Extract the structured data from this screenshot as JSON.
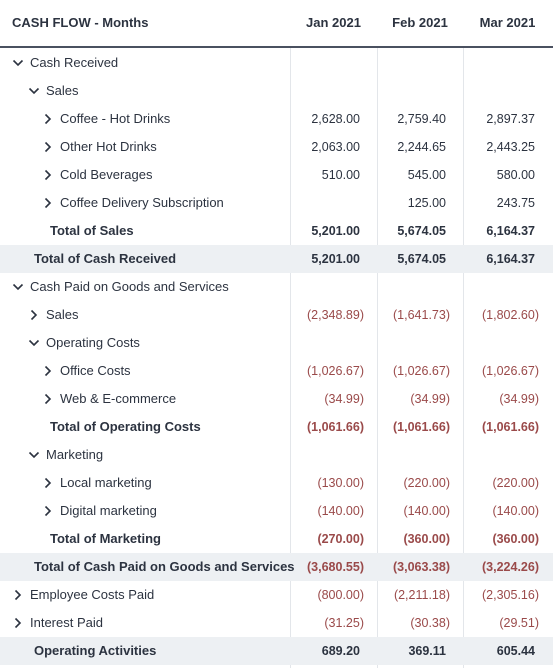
{
  "header": {
    "title": "CASH FLOW - Months",
    "columns": [
      "Jan 2021",
      "Feb 2021",
      "Mar 2021"
    ]
  },
  "rows": [
    {
      "label": "Cash Received"
    },
    {
      "label": "Sales"
    },
    {
      "label": "Coffee - Hot Drinks",
      "cells": [
        "2,628.00",
        "2,759.40",
        "2,897.37"
      ]
    },
    {
      "label": "Other Hot Drinks",
      "cells": [
        "2,063.00",
        "2,244.65",
        "2,443.25"
      ]
    },
    {
      "label": "Cold Beverages",
      "cells": [
        "510.00",
        "545.00",
        "580.00"
      ]
    },
    {
      "label": "Coffee Delivery Subscription",
      "cells": [
        null,
        "125.00",
        "243.75"
      ]
    },
    {
      "label": "Total of Sales",
      "cells": [
        "5,201.00",
        "5,674.05",
        "6,164.37"
      ]
    },
    {
      "label": "Total of Cash Received",
      "cells": [
        "5,201.00",
        "5,674.05",
        "6,164.37"
      ]
    },
    {
      "label": "Cash Paid on Goods and Services"
    },
    {
      "label": "Sales",
      "cells": [
        "(2,348.89)",
        "(1,641.73)",
        "(1,802.60)"
      ]
    },
    {
      "label": "Operating Costs"
    },
    {
      "label": "Office Costs",
      "cells": [
        "(1,026.67)",
        "(1,026.67)",
        "(1,026.67)"
      ]
    },
    {
      "label": "Web & E-commerce",
      "cells": [
        "(34.99)",
        "(34.99)",
        "(34.99)"
      ]
    },
    {
      "label": "Total of Operating Costs",
      "cells": [
        "(1,061.66)",
        "(1,061.66)",
        "(1,061.66)"
      ]
    },
    {
      "label": "Marketing"
    },
    {
      "label": "Local marketing",
      "cells": [
        "(130.00)",
        "(220.00)",
        "(220.00)"
      ]
    },
    {
      "label": "Digital marketing",
      "cells": [
        "(140.00)",
        "(140.00)",
        "(140.00)"
      ]
    },
    {
      "label": "Total of Marketing",
      "cells": [
        "(270.00)",
        "(360.00)",
        "(360.00)"
      ]
    },
    {
      "label": "Total of Cash Paid on Goods and Services",
      "cells": [
        "(3,680.55)",
        "(3,063.38)",
        "(3,224.26)"
      ]
    },
    {
      "label": "Employee Costs Paid",
      "cells": [
        "(800.00)",
        "(2,211.18)",
        "(2,305.16)"
      ]
    },
    {
      "label": "Interest Paid",
      "cells": [
        "(31.25)",
        "(30.38)",
        "(29.51)"
      ]
    },
    {
      "label": "Operating Activities",
      "cells": [
        "689.20",
        "369.11",
        "605.44"
      ]
    }
  ]
}
